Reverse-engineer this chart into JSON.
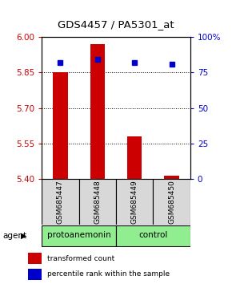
{
  "title": "GDS4457 / PA5301_at",
  "samples": [
    "GSM685447",
    "GSM685448",
    "GSM685449",
    "GSM685450"
  ],
  "transformed_counts": [
    5.85,
    5.97,
    5.58,
    5.415
  ],
  "percentile_ranks": [
    82,
    84,
    82,
    81
  ],
  "groups": [
    "protoanemonin",
    "protoanemonin",
    "control",
    "control"
  ],
  "ylim_left": [
    5.4,
    6.0
  ],
  "ylim_right": [
    0,
    100
  ],
  "yticks_left": [
    5.4,
    5.55,
    5.7,
    5.85,
    6.0
  ],
  "yticks_right": [
    0,
    25,
    50,
    75,
    100
  ],
  "bar_color": "#CC0000",
  "dot_color": "#0000CC",
  "bg_color": "#d8d8d8",
  "green_color": "#90EE90",
  "legend_bar_label": "transformed count",
  "legend_dot_label": "percentile rank within the sample",
  "left_tick_color": "#CC0000",
  "right_tick_color": "#0000CC"
}
